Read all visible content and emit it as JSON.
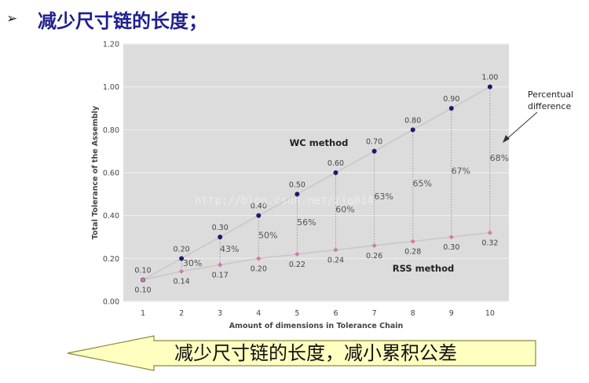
{
  "heading": {
    "bullet": "➢",
    "text": "减少尺寸链的长度；"
  },
  "callout": {
    "text": "减少尺寸链的长度，减小累积公差",
    "fill_color": "#ffffc0",
    "border_color": "#8b8b3a"
  },
  "watermark": "http://blog.csdn.net/zjq814",
  "colors": {
    "plot_bg": "#dcdcdc",
    "grid": "#eeeeee",
    "wc": "#1f1a6e",
    "rss": "#d27ab0",
    "line": "#c8c8c8",
    "text": "#444444",
    "annotation": "#222222"
  },
  "chart_data": {
    "type": "line",
    "x": [
      1,
      2,
      3,
      4,
      5,
      6,
      7,
      8,
      9,
      10
    ],
    "xlabel": "Amount of dimensions in Tolerance Chain",
    "ylabel": "Total Tolerance of the Assembly",
    "ylim": [
      0,
      1.2
    ],
    "yticks": [
      "0.00",
      "0.20",
      "0.40",
      "0.60",
      "0.80",
      "1.00",
      "1.20"
    ],
    "grid": true,
    "series": [
      {
        "name": "WC method",
        "values": [
          0.1,
          0.2,
          0.3,
          0.4,
          0.5,
          0.6,
          0.7,
          0.8,
          0.9,
          1.0
        ],
        "labels": [
          "0.10",
          "0.20",
          "0.30",
          "0.40",
          "0.50",
          "0.60",
          "0.70",
          "0.80",
          "0.90",
          "1.00"
        ]
      },
      {
        "name": "RSS method",
        "values": [
          0.1,
          0.14,
          0.17,
          0.2,
          0.22,
          0.24,
          0.26,
          0.28,
          0.3,
          0.32
        ],
        "labels": [
          "0.10",
          "0.14",
          "0.17",
          "0.20",
          "0.22",
          "0.24",
          "0.26",
          "0.28",
          "0.30",
          "0.32"
        ]
      }
    ],
    "differences": [
      "30%",
      "43%",
      "50%",
      "56%",
      "60%",
      "63%",
      "65%",
      "67%",
      "68%"
    ],
    "annotation": [
      "Percentual",
      "difference"
    ]
  }
}
